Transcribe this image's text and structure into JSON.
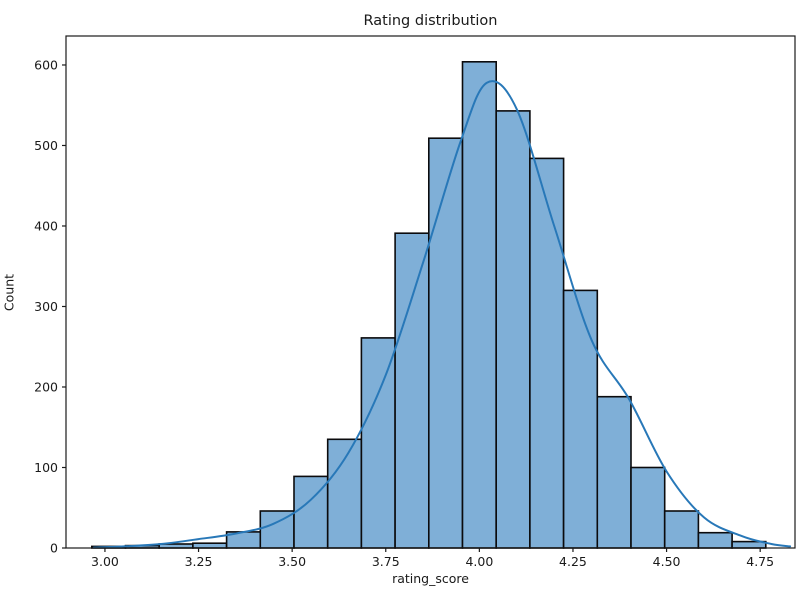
{
  "figure": {
    "title": "Rating distribution"
  },
  "chart_data": {
    "type": "bar",
    "subtype": "histogram_with_kde",
    "title": "Rating distribution",
    "xlabel": "rating_score",
    "ylabel": "Count",
    "grid": false,
    "legend": "none",
    "xlim": [
      2.896,
      4.843
    ],
    "ylim": [
      0,
      636
    ],
    "bin_edges": [
      2.965,
      3.055,
      3.145,
      3.235,
      3.325,
      3.415,
      3.505,
      3.595,
      3.685,
      3.775,
      3.865,
      3.955,
      4.045,
      4.135,
      4.225,
      4.315,
      4.405,
      4.495,
      4.585,
      4.675,
      4.765
    ],
    "values": [
      2,
      3,
      5,
      6,
      20,
      46,
      89,
      135,
      261,
      391,
      509,
      604,
      543,
      484,
      320,
      188,
      100,
      46,
      19,
      8
    ],
    "kde_curve": {
      "x": [
        2.97,
        3.05,
        3.15,
        3.25,
        3.35,
        3.45,
        3.55,
        3.65,
        3.75,
        3.85,
        3.95,
        4.02,
        4.1,
        4.2,
        4.3,
        4.4,
        4.5,
        4.6,
        4.7,
        4.78,
        4.83
      ],
      "y": [
        0.5,
        2,
        5,
        11,
        18,
        30,
        60,
        118,
        215,
        355,
        505,
        578,
        545,
        400,
        258,
        185,
        95,
        38,
        15,
        5,
        2
      ]
    },
    "x_tick_values": [
      3.0,
      3.25,
      3.5,
      3.75,
      4.0,
      4.25,
      4.5,
      4.75
    ],
    "x_tick_labels": [
      "3.00",
      "3.25",
      "3.50",
      "3.75",
      "4.00",
      "4.25",
      "4.50",
      "4.75"
    ],
    "y_tick_values": [
      0,
      100,
      200,
      300,
      400,
      500,
      600
    ],
    "y_tick_labels": [
      "0",
      "100",
      "200",
      "300",
      "400",
      "500",
      "600"
    ],
    "colors": {
      "bar_fill": "#7fafd7",
      "bar_edge": "#0b0b0d",
      "kde_line": "#2878b8",
      "spine": "#1a1a1a",
      "text": "#1a1a1a",
      "background": "#ffffff"
    }
  }
}
